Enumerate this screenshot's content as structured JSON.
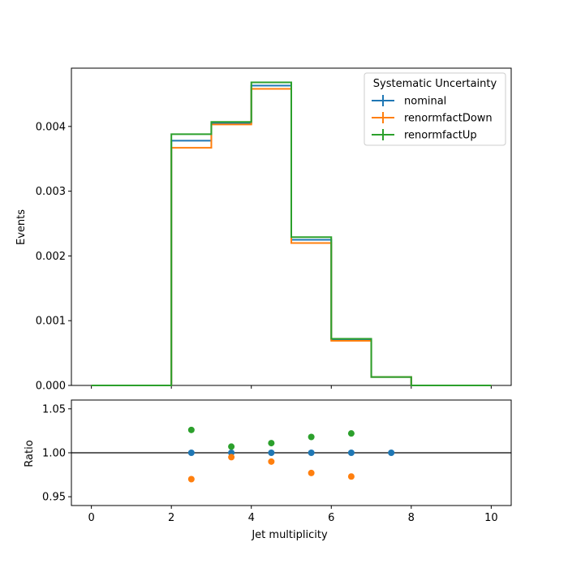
{
  "chart_data": [
    {
      "type": "line",
      "drawstyle": "steps",
      "ylabel": "Events",
      "xlim": [
        -0.5,
        10.5
      ],
      "ylim": [
        0,
        0.0049
      ],
      "xticks": [
        0,
        2,
        4,
        6,
        8,
        10
      ],
      "ytick_values": [
        0,
        0.001,
        0.002,
        0.003,
        0.004
      ],
      "ytick_labels": [
        "0.000",
        "0.001",
        "0.002",
        "0.003",
        "0.004"
      ],
      "bin_edges": [
        0,
        1,
        2,
        3,
        4,
        5,
        6,
        7,
        8,
        9,
        10
      ],
      "legend_title": "Systematic Uncertainty",
      "legend_position": "upper right",
      "series": [
        {
          "name": "nominal",
          "color": "#1f77b4",
          "values": [
            0,
            0,
            0.00378,
            0.00405,
            0.00463,
            0.00225,
            0.00071,
            0.00013,
            0,
            0
          ]
        },
        {
          "name": "renormfactDown",
          "color": "#ff7f0e",
          "values": [
            0,
            0,
            0.00367,
            0.00403,
            0.00458,
            0.0022,
            0.00069,
            0.00013,
            0,
            0
          ]
        },
        {
          "name": "renormfactUp",
          "color": "#2ca02c",
          "values": [
            0,
            0,
            0.00388,
            0.00407,
            0.00468,
            0.00229,
            0.00072,
            0.00013,
            0,
            0
          ]
        }
      ]
    },
    {
      "type": "scatter",
      "xlabel": "Jet multiplicity",
      "ylabel": "Ratio",
      "xlim": [
        -0.5,
        10.5
      ],
      "ylim": [
        0.94,
        1.06
      ],
      "xticks": [
        0,
        2,
        4,
        6,
        8,
        10
      ],
      "ytick_values": [
        0.95,
        1.0,
        1.05
      ],
      "ytick_labels": [
        "0.95",
        "1.00",
        "1.05"
      ],
      "reference_line": 1.0,
      "series": [
        {
          "name": "nominal",
          "color": "#1f77b4",
          "x": [
            2.5,
            3.5,
            4.5,
            5.5,
            6.5,
            7.5
          ],
          "y": [
            1.0,
            1.0,
            1.0,
            1.0,
            1.0,
            1.0
          ]
        },
        {
          "name": "renormfactDown",
          "color": "#ff7f0e",
          "x": [
            2.5,
            3.5,
            4.5,
            5.5,
            6.5
          ],
          "y": [
            0.97,
            0.995,
            0.99,
            0.977,
            0.973
          ]
        },
        {
          "name": "renormfactUp",
          "color": "#2ca02c",
          "x": [
            2.5,
            3.5,
            4.5,
            5.5,
            6.5
          ],
          "y": [
            1.026,
            1.007,
            1.011,
            1.018,
            1.022
          ]
        }
      ]
    }
  ]
}
